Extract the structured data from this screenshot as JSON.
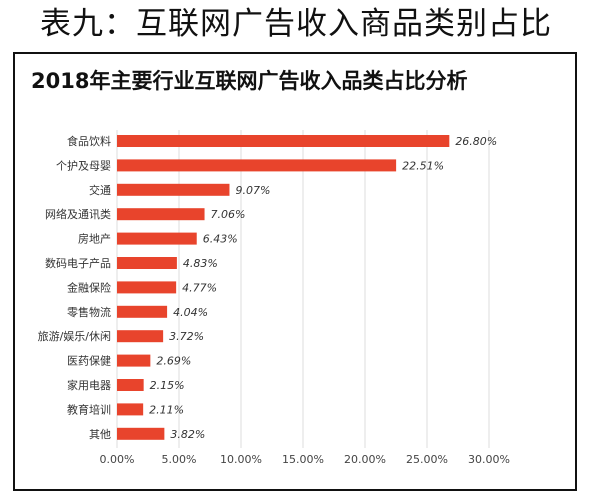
{
  "page": {
    "title": "表九：互联网广告收入商品类别占比"
  },
  "chart_data": {
    "type": "bar",
    "orientation": "horizontal",
    "title": "2018年主要行业互联网广告收入品类占比分析",
    "xlabel": "",
    "ylabel": "",
    "xlim": [
      0,
      30
    ],
    "x_ticks": [
      "0.00%",
      "5.00%",
      "10.00%",
      "15.00%",
      "20.00%",
      "25.00%",
      "30.00%"
    ],
    "grid": "vertical",
    "legend": "none",
    "bar_color": "#e8442c",
    "categories": [
      "食品饮料",
      "个护及母婴",
      "交通",
      "网络及通讯类",
      "房地产",
      "数码电子产品",
      "金融保险",
      "零售物流",
      "旅游/娱乐/休闲",
      "医药保健",
      "家用电器",
      "教育培训",
      "其他"
    ],
    "values": [
      26.8,
      22.51,
      9.07,
      7.06,
      6.43,
      4.83,
      4.77,
      4.04,
      3.72,
      2.69,
      2.15,
      2.11,
      3.82
    ],
    "value_labels": [
      "26.80%",
      "22.51%",
      "9.07%",
      "7.06%",
      "6.43%",
      "4.83%",
      "4.77%",
      "4.04%",
      "3.72%",
      "2.69%",
      "2.15%",
      "2.11%",
      "3.82%"
    ]
  }
}
